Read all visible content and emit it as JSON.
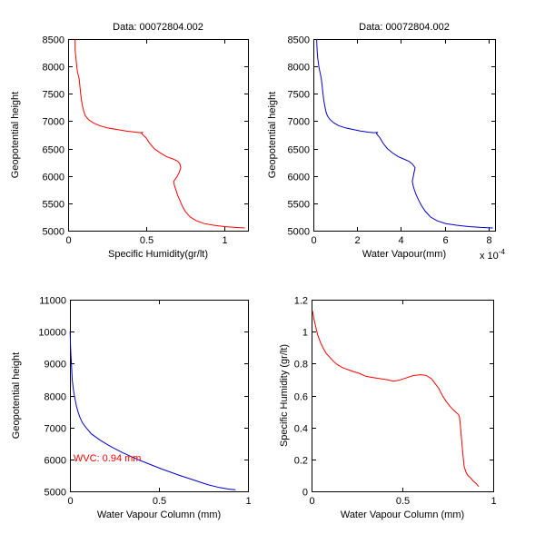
{
  "figure": {
    "background": "#ffffff",
    "axis_color": "#000000",
    "red": "#ff0000",
    "blue": "#0000cc"
  },
  "chart_data": [
    {
      "id": "specific-humidity-vs-height",
      "type": "line",
      "title": "Data: 00072804.002",
      "xlabel": "Specific Humidity(gr/lt)",
      "ylabel": "Geopotential height",
      "xlim": [
        0,
        1.15
      ],
      "ylim": [
        5000,
        8500
      ],
      "grid": false,
      "xticks": {
        "values": [
          0,
          0.5,
          1
        ],
        "labels": [
          "0",
          "0.5",
          "1"
        ]
      },
      "yticks": {
        "values": [
          5000,
          5500,
          6000,
          6500,
          7000,
          7500,
          8000,
          8500
        ],
        "labels": [
          "5000",
          "5500",
          "6000",
          "6500",
          "7000",
          "7500",
          "8000",
          "8500"
        ]
      },
      "series": [
        {
          "name": "specific-humidity-profile",
          "color": "#ff0000",
          "points": [
            [
              0.045,
              8500
            ],
            [
              0.045,
              8300
            ],
            [
              0.05,
              8150
            ],
            [
              0.055,
              8000
            ],
            [
              0.06,
              7900
            ],
            [
              0.07,
              7780
            ],
            [
              0.075,
              7650
            ],
            [
              0.08,
              7500
            ],
            [
              0.085,
              7400
            ],
            [
              0.09,
              7300
            ],
            [
              0.1,
              7180
            ],
            [
              0.11,
              7100
            ],
            [
              0.13,
              7030
            ],
            [
              0.16,
              6970
            ],
            [
              0.2,
              6920
            ],
            [
              0.25,
              6880
            ],
            [
              0.31,
              6850
            ],
            [
              0.37,
              6820
            ],
            [
              0.43,
              6800
            ],
            [
              0.46,
              6790
            ],
            [
              0.475,
              6795
            ],
            [
              0.47,
              6775
            ],
            [
              0.5,
              6690
            ],
            [
              0.52,
              6600
            ],
            [
              0.55,
              6500
            ],
            [
              0.59,
              6420
            ],
            [
              0.63,
              6350
            ],
            [
              0.67,
              6310
            ],
            [
              0.7,
              6270
            ],
            [
              0.715,
              6220
            ],
            [
              0.72,
              6150
            ],
            [
              0.71,
              6060
            ],
            [
              0.695,
              5980
            ],
            [
              0.675,
              5900
            ],
            [
              0.68,
              5820
            ],
            [
              0.69,
              5740
            ],
            [
              0.7,
              5650
            ],
            [
              0.715,
              5550
            ],
            [
              0.73,
              5450
            ],
            [
              0.75,
              5350
            ],
            [
              0.78,
              5250
            ],
            [
              0.82,
              5180
            ],
            [
              0.87,
              5130
            ],
            [
              0.93,
              5100
            ],
            [
              1.0,
              5075
            ],
            [
              1.07,
              5060
            ],
            [
              1.13,
              5050
            ]
          ]
        }
      ],
      "annotations": []
    },
    {
      "id": "water-vapour-vs-height",
      "type": "line",
      "title": "Data: 00072804.002",
      "xlabel": "Water Vapour(mm)",
      "ylabel": "Geopotential height",
      "xlim": [
        0,
        8.3
      ],
      "ylim": [
        5000,
        8500
      ],
      "grid": false,
      "x_exponent": {
        "prefix": "x 10",
        "exponent": "-4"
      },
      "xticks": {
        "values": [
          0,
          2,
          4,
          6,
          8
        ],
        "labels": [
          "0",
          "2",
          "4",
          "6",
          "8"
        ]
      },
      "yticks": {
        "values": [
          5000,
          5500,
          6000,
          6500,
          7000,
          7500,
          8000,
          8500
        ],
        "labels": [
          "5000",
          "5500",
          "6000",
          "6500",
          "7000",
          "7500",
          "8000",
          "8500"
        ]
      },
      "series": [
        {
          "name": "water-vapour-profile",
          "color": "#0000cc",
          "points": [
            [
              0.15,
              8500
            ],
            [
              0.17,
              8300
            ],
            [
              0.2,
              8150
            ],
            [
              0.25,
              8000
            ],
            [
              0.3,
              7900
            ],
            [
              0.36,
              7780
            ],
            [
              0.4,
              7650
            ],
            [
              0.44,
              7500
            ],
            [
              0.47,
              7400
            ],
            [
              0.51,
              7300
            ],
            [
              0.57,
              7180
            ],
            [
              0.64,
              7100
            ],
            [
              0.76,
              7030
            ],
            [
              0.93,
              6970
            ],
            [
              1.15,
              6920
            ],
            [
              1.45,
              6880
            ],
            [
              1.8,
              6850
            ],
            [
              2.15,
              6820
            ],
            [
              2.5,
              6800
            ],
            [
              2.75,
              6790
            ],
            [
              2.92,
              6795
            ],
            [
              2.88,
              6775
            ],
            [
              3.05,
              6690
            ],
            [
              3.18,
              6600
            ],
            [
              3.38,
              6500
            ],
            [
              3.62,
              6420
            ],
            [
              3.88,
              6350
            ],
            [
              4.12,
              6310
            ],
            [
              4.35,
              6270
            ],
            [
              4.52,
              6220
            ],
            [
              4.65,
              6150
            ],
            [
              4.6,
              6060
            ],
            [
              4.56,
              5980
            ],
            [
              4.52,
              5900
            ],
            [
              4.56,
              5820
            ],
            [
              4.62,
              5740
            ],
            [
              4.7,
              5650
            ],
            [
              4.82,
              5550
            ],
            [
              4.95,
              5450
            ],
            [
              5.12,
              5350
            ],
            [
              5.35,
              5250
            ],
            [
              5.65,
              5180
            ],
            [
              6.05,
              5130
            ],
            [
              6.55,
              5100
            ],
            [
              7.1,
              5075
            ],
            [
              7.65,
              5060
            ],
            [
              8.2,
              5050
            ]
          ]
        }
      ],
      "annotations": []
    },
    {
      "id": "wvc-vs-height",
      "type": "line",
      "title": "",
      "xlabel": "Water Vapour Column (mm)",
      "ylabel": "Geopotential height",
      "xlim": [
        0,
        1
      ],
      "ylim": [
        5000,
        11000
      ],
      "grid": false,
      "xticks": {
        "values": [
          0,
          0.5,
          1
        ],
        "labels": [
          "0",
          "0.5",
          "1"
        ]
      },
      "yticks": {
        "values": [
          5000,
          6000,
          7000,
          8000,
          9000,
          10000,
          11000
        ],
        "labels": [
          "5000",
          "6000",
          "7000",
          "8000",
          "9000",
          "10000",
          "11000"
        ]
      },
      "series": [
        {
          "name": "wvc-profile",
          "color": "#0000cc",
          "points": [
            [
              0.001,
              10000
            ],
            [
              0.003,
              9600
            ],
            [
              0.005,
              9300
            ],
            [
              0.007,
              9100
            ],
            [
              0.01,
              8800
            ],
            [
              0.013,
              8500
            ],
            [
              0.018,
              8250
            ],
            [
              0.023,
              8050
            ],
            [
              0.03,
              7850
            ],
            [
              0.037,
              7650
            ],
            [
              0.045,
              7500
            ],
            [
              0.055,
              7330
            ],
            [
              0.07,
              7150
            ],
            [
              0.09,
              7000
            ],
            [
              0.105,
              6900
            ],
            [
              0.12,
              6800
            ],
            [
              0.145,
              6700
            ],
            [
              0.17,
              6600
            ],
            [
              0.2,
              6500
            ],
            [
              0.23,
              6400
            ],
            [
              0.265,
              6300
            ],
            [
              0.3,
              6200
            ],
            [
              0.34,
              6100
            ],
            [
              0.38,
              6000
            ],
            [
              0.425,
              5900
            ],
            [
              0.47,
              5800
            ],
            [
              0.515,
              5700
            ],
            [
              0.565,
              5600
            ],
            [
              0.615,
              5500
            ],
            [
              0.67,
              5400
            ],
            [
              0.725,
              5300
            ],
            [
              0.78,
              5200
            ],
            [
              0.84,
              5120
            ],
            [
              0.89,
              5070
            ],
            [
              0.93,
              5050
            ]
          ]
        }
      ],
      "annotations": [
        {
          "id": "wvc-value",
          "text": "WVC: 0.94 mm",
          "x": 0.02,
          "y": 6050,
          "color": "#ff0000"
        }
      ]
    },
    {
      "id": "humidity-vs-wvc",
      "type": "line",
      "title": "",
      "xlabel": "Water Vapour Column (mm)",
      "ylabel": "Specific Humidity (gr/lt)",
      "xlim": [
        0,
        1
      ],
      "ylim": [
        0,
        1.2
      ],
      "grid": false,
      "xticks": {
        "values": [
          0,
          0.5,
          1
        ],
        "labels": [
          "0",
          "0.5",
          "1"
        ]
      },
      "yticks": {
        "values": [
          0,
          0.2,
          0.4,
          0.6,
          0.8,
          1,
          1.2
        ],
        "labels": [
          "0",
          "0.2",
          "0.4",
          "0.6",
          "0.8",
          "1",
          "1.2"
        ]
      },
      "series": [
        {
          "name": "humidity-vs-wvc-curve",
          "color": "#ff0000",
          "points": [
            [
              0.005,
              1.13
            ],
            [
              0.01,
              1.1
            ],
            [
              0.015,
              1.07
            ],
            [
              0.025,
              1.02
            ],
            [
              0.035,
              0.975
            ],
            [
              0.05,
              0.93
            ],
            [
              0.065,
              0.895
            ],
            [
              0.08,
              0.865
            ],
            [
              0.1,
              0.84
            ],
            [
              0.12,
              0.815
            ],
            [
              0.14,
              0.795
            ],
            [
              0.17,
              0.775
            ],
            [
              0.2,
              0.762
            ],
            [
              0.23,
              0.75
            ],
            [
              0.26,
              0.74
            ],
            [
              0.3,
              0.72
            ],
            [
              0.34,
              0.712
            ],
            [
              0.38,
              0.705
            ],
            [
              0.42,
              0.698
            ],
            [
              0.45,
              0.69
            ],
            [
              0.48,
              0.695
            ],
            [
              0.52,
              0.71
            ],
            [
              0.56,
              0.725
            ],
            [
              0.6,
              0.73
            ],
            [
              0.63,
              0.726
            ],
            [
              0.66,
              0.705
            ],
            [
              0.68,
              0.675
            ],
            [
              0.7,
              0.645
            ],
            [
              0.72,
              0.6
            ],
            [
              0.74,
              0.565
            ],
            [
              0.76,
              0.535
            ],
            [
              0.78,
              0.51
            ],
            [
              0.795,
              0.495
            ],
            [
              0.81,
              0.48
            ],
            [
              0.815,
              0.46
            ],
            [
              0.82,
              0.4
            ],
            [
              0.825,
              0.335
            ],
            [
              0.83,
              0.27
            ],
            [
              0.835,
              0.21
            ],
            [
              0.84,
              0.155
            ],
            [
              0.85,
              0.12
            ],
            [
              0.86,
              0.1
            ],
            [
              0.875,
              0.085
            ],
            [
              0.89,
              0.065
            ],
            [
              0.905,
              0.05
            ],
            [
              0.92,
              0.03
            ]
          ]
        }
      ],
      "annotations": []
    }
  ]
}
